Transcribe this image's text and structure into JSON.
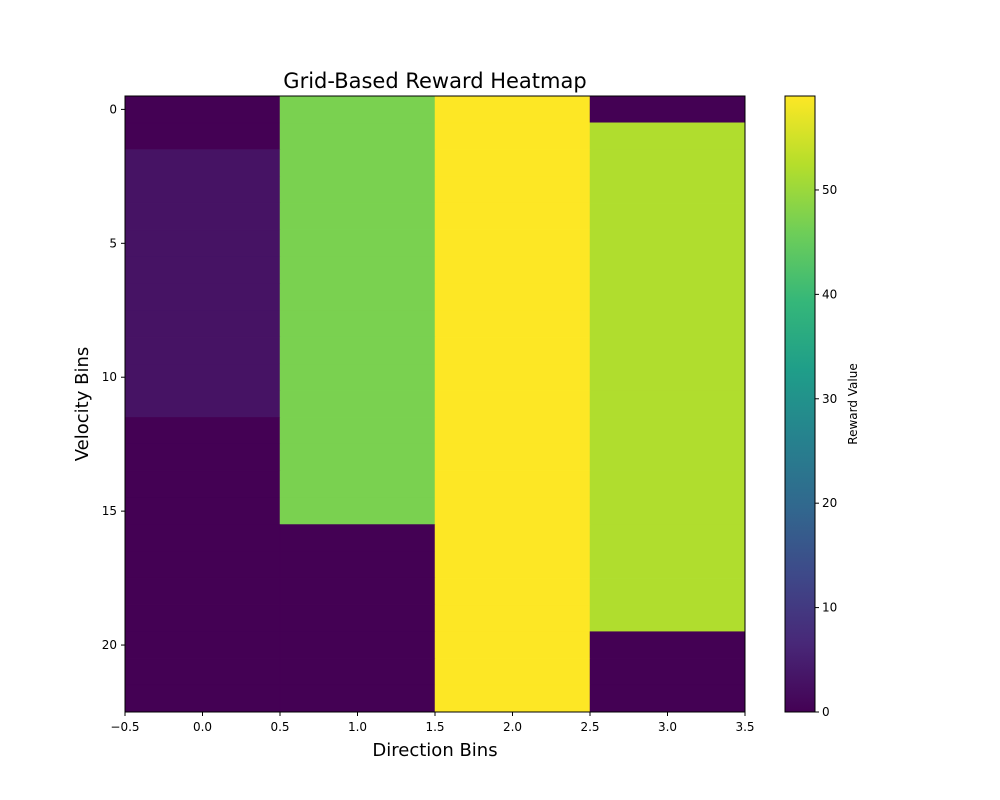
{
  "chart_data": {
    "type": "heatmap",
    "title": "Grid-Based Reward Heatmap",
    "xlabel": "Direction Bins",
    "ylabel": "Velocity Bins",
    "colorbar_label": "Reward Value",
    "colormap": "viridis",
    "x_categories": [
      0,
      1,
      2,
      3
    ],
    "y_categories": [
      0,
      1,
      2,
      3,
      4,
      5,
      6,
      7,
      8,
      9,
      10,
      11,
      12,
      13,
      14,
      15,
      16,
      17,
      18,
      19,
      20,
      21,
      22
    ],
    "xlim": [
      -0.5,
      3.5
    ],
    "ylim": [
      22.5,
      -0.5
    ],
    "vlim": [
      0,
      59
    ],
    "x_ticks": [
      -0.5,
      0.0,
      0.5,
      1.0,
      1.5,
      2.0,
      2.5,
      3.0,
      3.5
    ],
    "x_tick_labels": [
      "−0.5",
      "0.0",
      "0.5",
      "1.0",
      "1.5",
      "2.0",
      "2.5",
      "3.0",
      "3.5"
    ],
    "y_ticks": [
      0,
      5,
      10,
      15,
      20
    ],
    "y_tick_labels": [
      "0",
      "5",
      "10",
      "15",
      "20"
    ],
    "colorbar_ticks": [
      0,
      10,
      20,
      30,
      40,
      50
    ],
    "colorbar_tick_labels": [
      "0",
      "10",
      "20",
      "30",
      "40",
      "50"
    ],
    "values": [
      [
        0,
        47,
        59,
        0
      ],
      [
        0,
        47,
        59,
        52
      ],
      [
        3,
        47,
        59,
        52
      ],
      [
        3,
        47,
        59,
        52
      ],
      [
        3,
        47,
        59,
        52
      ],
      [
        3,
        47,
        59,
        52
      ],
      [
        3,
        47,
        59,
        52
      ],
      [
        3,
        47,
        59,
        52
      ],
      [
        3,
        47,
        59,
        52
      ],
      [
        3,
        47,
        59,
        52
      ],
      [
        3,
        47,
        59,
        52
      ],
      [
        3,
        47,
        59,
        52
      ],
      [
        0,
        47,
        59,
        52
      ],
      [
        0,
        47,
        59,
        52
      ],
      [
        0,
        47,
        59,
        52
      ],
      [
        0,
        47,
        59,
        52
      ],
      [
        0,
        0,
        59,
        52
      ],
      [
        0,
        0,
        59,
        52
      ],
      [
        0,
        0,
        59,
        52
      ],
      [
        0,
        0,
        59,
        52
      ],
      [
        0,
        0,
        59,
        0
      ],
      [
        0,
        0,
        59,
        0
      ],
      [
        0,
        0,
        59,
        0
      ]
    ]
  }
}
